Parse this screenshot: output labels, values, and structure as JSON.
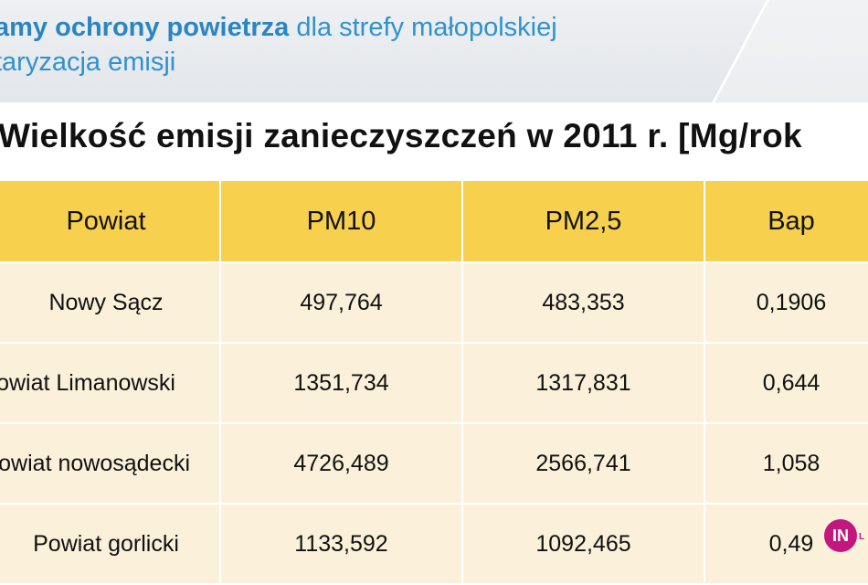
{
  "header": {
    "line1_bold": "amy ochrony powietrza",
    "line1_rest": " dla strefy małopolskiej",
    "line2": "taryzacja emisji"
  },
  "title": "Wielkość emisji zanieczyszczeń w 2011 r. [Mg/rok",
  "table": {
    "headers": [
      "Powiat",
      "PM10",
      "PM2,5",
      "Bap"
    ],
    "rows": [
      [
        "Nowy Sącz",
        "497,764",
        "483,353",
        "0,1906"
      ],
      [
        "owiat Limanowski",
        "1351,734",
        "1317,831",
        "0,644"
      ],
      [
        "owiat nowosądecki",
        "4726,489",
        "2566,741",
        "1,058"
      ],
      [
        "Powiat gorlicki",
        "1133,592",
        "1092,465",
        "0,49"
      ]
    ]
  },
  "logo": {
    "text": "IN",
    "tail": "L",
    "color": "#c2187d"
  },
  "colors": {
    "header_text": "#2f92cf",
    "table_header_bg": "#f7d04d",
    "table_row_bg": "#fbf0d9"
  }
}
